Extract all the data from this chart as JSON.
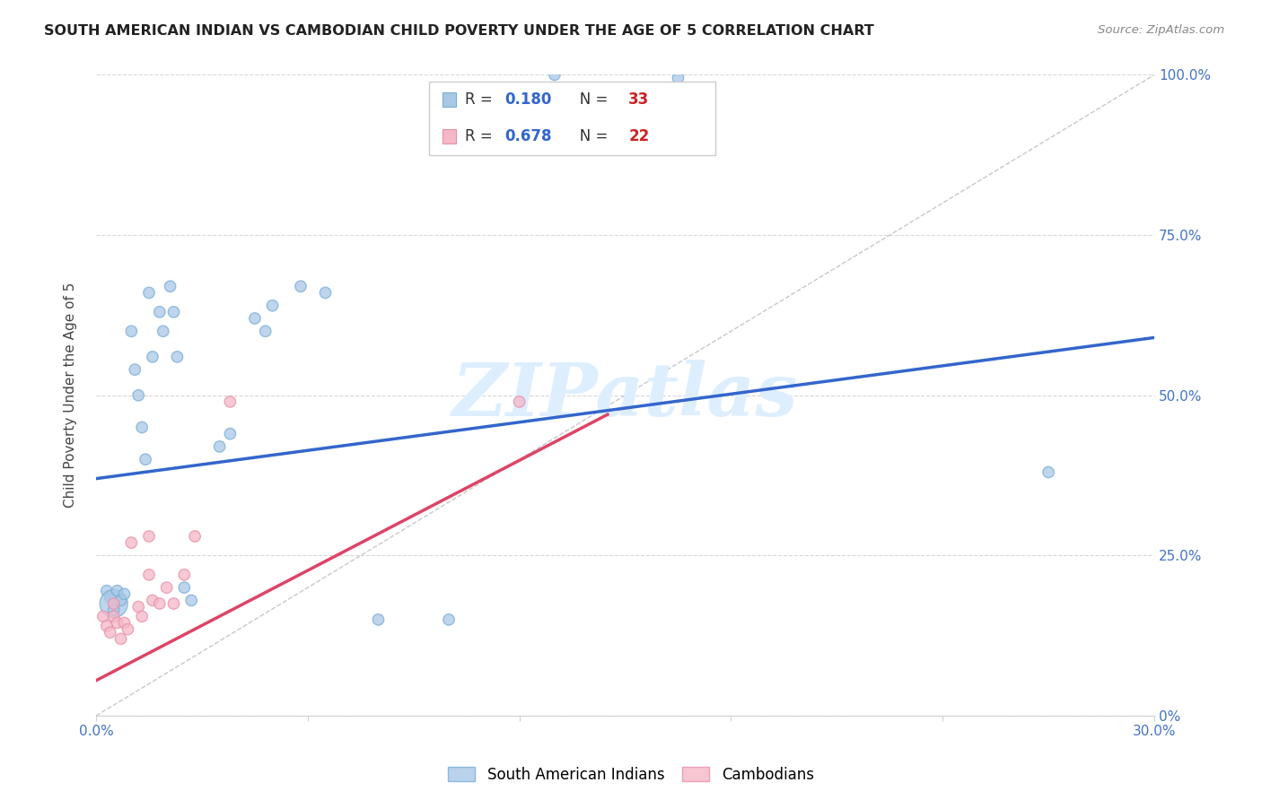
{
  "title": "SOUTH AMERICAN INDIAN VS CAMBODIAN CHILD POVERTY UNDER THE AGE OF 5 CORRELATION CHART",
  "source": "Source: ZipAtlas.com",
  "ylabel": "Child Poverty Under the Age of 5",
  "xlim": [
    0.0,
    0.3
  ],
  "ylim": [
    0.0,
    1.0
  ],
  "blue_R": 0.18,
  "blue_N": 33,
  "pink_R": 0.678,
  "pink_N": 22,
  "blue_color": "#a8c8e8",
  "pink_color": "#f4b8c8",
  "blue_edge_color": "#7aaed4",
  "pink_edge_color": "#e890a8",
  "blue_line_color": "#3366cc",
  "pink_line_color": "#dd4466",
  "ref_line_color": "#c8c8c8",
  "watermark": "ZIPatlas",
  "watermark_color": "#ddeeff",
  "label_color": "#4472c4",
  "blue_scatter_x": [
    0.003,
    0.004,
    0.005,
    0.005,
    0.006,
    0.007,
    0.008,
    0.01,
    0.011,
    0.012,
    0.013,
    0.014,
    0.015,
    0.016,
    0.018,
    0.019,
    0.021,
    0.022,
    0.023,
    0.025,
    0.027,
    0.035,
    0.038,
    0.045,
    0.048,
    0.05,
    0.058,
    0.065,
    0.08,
    0.1,
    0.13,
    0.165,
    0.27
  ],
  "blue_scatter_y": [
    0.195,
    0.185,
    0.175,
    0.165,
    0.195,
    0.18,
    0.19,
    0.6,
    0.54,
    0.5,
    0.45,
    0.4,
    0.66,
    0.56,
    0.63,
    0.6,
    0.67,
    0.63,
    0.56,
    0.2,
    0.18,
    0.42,
    0.44,
    0.62,
    0.6,
    0.64,
    0.67,
    0.66,
    0.15,
    0.15,
    1.0,
    0.995,
    0.38
  ],
  "blue_scatter_sizes": [
    80,
    80,
    500,
    80,
    80,
    80,
    80,
    80,
    80,
    80,
    80,
    80,
    80,
    80,
    80,
    80,
    80,
    80,
    80,
    80,
    80,
    80,
    80,
    80,
    80,
    80,
    80,
    80,
    80,
    80,
    80,
    80,
    80
  ],
  "pink_scatter_x": [
    0.002,
    0.003,
    0.004,
    0.005,
    0.005,
    0.006,
    0.007,
    0.008,
    0.009,
    0.01,
    0.012,
    0.013,
    0.015,
    0.015,
    0.016,
    0.018,
    0.02,
    0.022,
    0.025,
    0.028,
    0.038,
    0.12
  ],
  "pink_scatter_y": [
    0.155,
    0.14,
    0.13,
    0.175,
    0.155,
    0.145,
    0.12,
    0.145,
    0.135,
    0.27,
    0.17,
    0.155,
    0.28,
    0.22,
    0.18,
    0.175,
    0.2,
    0.175,
    0.22,
    0.28,
    0.49,
    0.49
  ],
  "pink_scatter_sizes": [
    80,
    80,
    80,
    80,
    80,
    80,
    80,
    80,
    80,
    80,
    80,
    80,
    80,
    80,
    80,
    80,
    80,
    80,
    80,
    80,
    80,
    80
  ],
  "blue_line_x": [
    0.0,
    0.3
  ],
  "blue_line_y": [
    0.37,
    0.59
  ],
  "pink_line_x": [
    0.0,
    0.145
  ],
  "pink_line_y": [
    0.055,
    0.47
  ]
}
